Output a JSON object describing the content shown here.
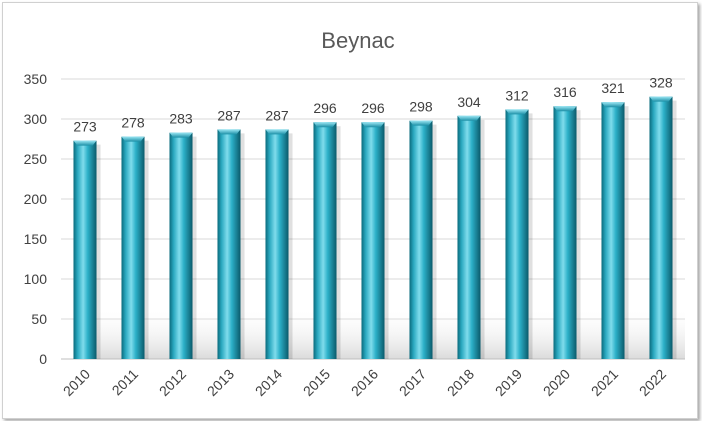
{
  "chart_data": {
    "type": "bar",
    "title": "Beynac",
    "xlabel": "",
    "ylabel": "",
    "categories": [
      "2010",
      "2011",
      "2012",
      "2013",
      "2014",
      "2015",
      "2016",
      "2017",
      "2018",
      "2019",
      "2020",
      "2021",
      "2022"
    ],
    "values": [
      273,
      278,
      283,
      287,
      287,
      296,
      296,
      298,
      304,
      312,
      316,
      321,
      328
    ],
    "ylim": [
      0,
      350
    ],
    "yticks": [
      0,
      50,
      100,
      150,
      200,
      250,
      300,
      350
    ],
    "grid": true,
    "legend": "none",
    "colors": {
      "bar_light": "#6fd3e6",
      "bar_mid": "#1f9fb6",
      "bar_dark": "#0a5f70",
      "grid": "#d9d9d9",
      "text": "#404040"
    }
  }
}
